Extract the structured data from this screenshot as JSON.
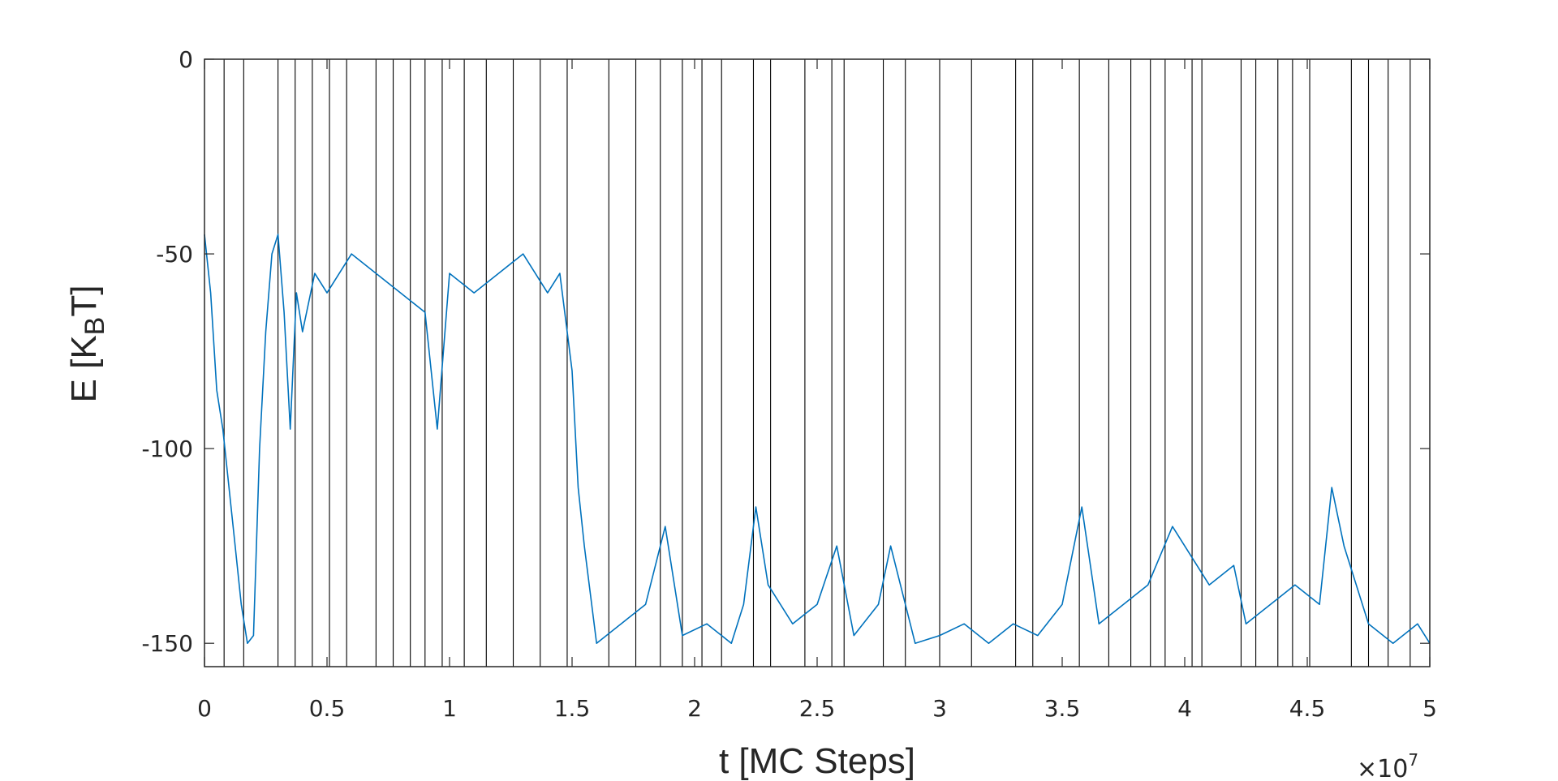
{
  "chart_data": {
    "type": "line",
    "title": "",
    "xlabel": "t [MC Steps]",
    "ylabel_main": "E [K",
    "ylabel_sub": "B",
    "ylabel_end": "T]",
    "x_exponent_prefix": "×10",
    "x_exponent_power": "7",
    "xlim": [
      0,
      50000000
    ],
    "ylim": [
      -156,
      0
    ],
    "x_tick_values": [
      0,
      5000000,
      10000000,
      15000000,
      20000000,
      25000000,
      30000000,
      35000000,
      40000000,
      45000000,
      50000000
    ],
    "x_tick_labels": [
      "0",
      "0.5",
      "1",
      "1.5",
      "2",
      "2.5",
      "3",
      "3.5",
      "4",
      "4.5",
      "5"
    ],
    "y_tick_values": [
      0,
      -50,
      -100,
      -150
    ],
    "y_tick_labels": [
      "0",
      "-50",
      "-100",
      "-150"
    ],
    "grid": false,
    "series_color": "#0072BD",
    "marker_color": "#000000",
    "marker_lines_x": [
      800000,
      1600000,
      3000000,
      3700000,
      4400000,
      5100000,
      5800000,
      7000000,
      7700000,
      8400000,
      9000000,
      9700000,
      10600000,
      11500000,
      12600000,
      13700000,
      14800000,
      16500000,
      17600000,
      18600000,
      19500000,
      20300000,
      21100000,
      22400000,
      23100000,
      24500000,
      25600000,
      26100000,
      27700000,
      28600000,
      30000000,
      31300000,
      33100000,
      33800000,
      35700000,
      36900000,
      37800000,
      38600000,
      39200000,
      40300000,
      40700000,
      42300000,
      42900000,
      43800000,
      44400000,
      45100000,
      46800000,
      47500000,
      48300000,
      49200000
    ],
    "series": [
      {
        "x": [
          0,
          250000,
          500000,
          750000,
          1000000,
          1250000,
          1500000,
          1750000,
          2000000,
          2250000,
          2500000,
          2750000,
          3000000,
          3250000,
          3500000,
          3750000,
          4000000,
          4500000,
          5000000,
          6000000,
          7000000,
          8000000,
          9000000,
          9500000,
          10000000,
          11000000,
          12000000,
          13000000,
          14000000,
          14500000,
          15000000,
          15250000,
          15500000,
          16000000,
          17000000,
          18000000,
          18800000,
          19500000,
          20500000,
          21500000,
          22000000,
          22500000,
          23000000,
          24000000,
          25000000,
          25800000,
          26500000,
          27500000,
          28000000,
          29000000,
          30000000,
          31000000,
          32000000,
          33000000,
          34000000,
          35000000,
          35800000,
          36500000,
          37500000,
          38500000,
          39500000,
          40000000,
          41000000,
          42000000,
          42500000,
          43500000,
          44500000,
          45500000,
          46000000,
          46500000,
          47500000,
          48500000,
          49500000,
          50000000
        ],
        "y": [
          -45,
          -60,
          -85,
          -95,
          -110,
          -125,
          -140,
          -150,
          -148,
          -100,
          -70,
          -50,
          -45,
          -65,
          -95,
          -60,
          -70,
          -55,
          -60,
          -50,
          -55,
          -60,
          -65,
          -95,
          -55,
          -60,
          -55,
          -50,
          -60,
          -55,
          -80,
          -110,
          -125,
          -150,
          -145,
          -140,
          -120,
          -148,
          -145,
          -150,
          -140,
          -115,
          -135,
          -145,
          -140,
          -125,
          -148,
          -140,
          -125,
          -150,
          -148,
          -145,
          -150,
          -145,
          -148,
          -140,
          -115,
          -145,
          -140,
          -135,
          -120,
          -125,
          -135,
          -130,
          -145,
          -140,
          -135,
          -140,
          -110,
          -125,
          -145,
          -150,
          -145,
          -150
        ]
      }
    ]
  }
}
